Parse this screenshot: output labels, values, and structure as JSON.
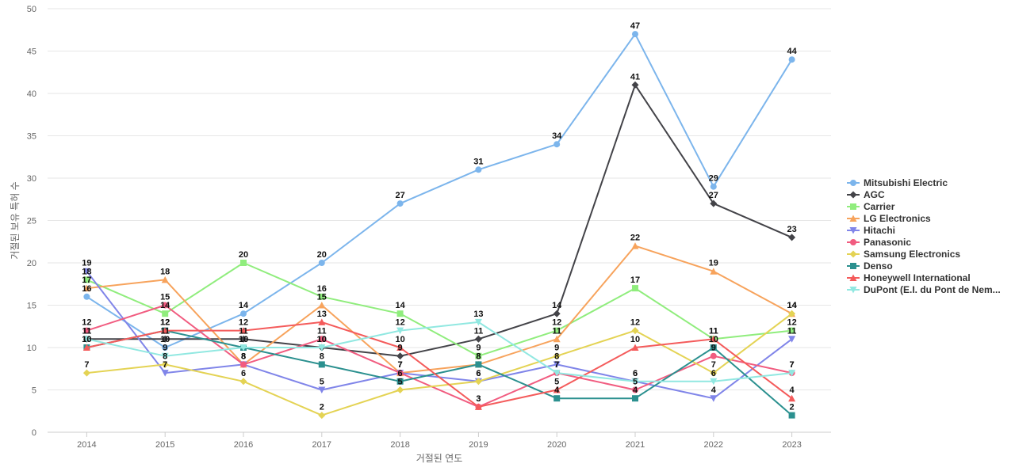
{
  "chart_data": {
    "type": "line",
    "title": "",
    "xlabel": "거절된 연도",
    "ylabel": "거절된 보유 특허 수",
    "x": [
      "2014",
      "2015",
      "2016",
      "2017",
      "2018",
      "2019",
      "2020",
      "2021",
      "2022",
      "2023"
    ],
    "ylim": [
      0,
      50
    ],
    "yticks": [
      0,
      5,
      10,
      15,
      20,
      25,
      30,
      35,
      40,
      45,
      50
    ],
    "grid": true,
    "legend": "right",
    "series": [
      {
        "name": "Mitsubishi Electric",
        "color": "#7cb5ec",
        "marker": "circle",
        "values": [
          16,
          10,
          14,
          20,
          27,
          31,
          34,
          47,
          29,
          44
        ]
      },
      {
        "name": "AGC",
        "color": "#434348",
        "marker": "diamond",
        "values": [
          11,
          11,
          11,
          10,
          9,
          11,
          14,
          41,
          27,
          23
        ]
      },
      {
        "name": "Carrier",
        "color": "#90ed7d",
        "marker": "square",
        "values": [
          18,
          14,
          20,
          16,
          14,
          9,
          12,
          17,
          11,
          12
        ]
      },
      {
        "name": "LG Electronics",
        "color": "#f7a35c",
        "marker": "triangle",
        "values": [
          17,
          18,
          8,
          15,
          7,
          8,
          11,
          22,
          19,
          14
        ]
      },
      {
        "name": "Hitachi",
        "color": "#8085e9",
        "marker": "triangle-down",
        "values": [
          19,
          7,
          8,
          5,
          7,
          6,
          8,
          6,
          4,
          11
        ]
      },
      {
        "name": "Panasonic",
        "color": "#f15c80",
        "marker": "circle",
        "values": [
          12,
          15,
          8,
          11,
          7,
          3,
          7,
          5,
          9,
          7
        ]
      },
      {
        "name": "Samsung Electronics",
        "color": "#e4d354",
        "marker": "diamond",
        "values": [
          7,
          8,
          6,
          2,
          5,
          6,
          9,
          12,
          7,
          14
        ]
      },
      {
        "name": "Denso",
        "color": "#2b908f",
        "marker": "square",
        "values": [
          10,
          12,
          10,
          8,
          6,
          8,
          4,
          4,
          10,
          2
        ]
      },
      {
        "name": "Honeywell International",
        "color": "#f45b5b",
        "marker": "triangle",
        "values": [
          10,
          12,
          12,
          13,
          10,
          3,
          5,
          10,
          11,
          4
        ]
      },
      {
        "name": "DuPont (E.I. du Pont de Nem...",
        "color": "#91e8e1",
        "marker": "triangle-down",
        "values": [
          11,
          9,
          10,
          10,
          12,
          13,
          7,
          6,
          6,
          7
        ]
      }
    ]
  }
}
